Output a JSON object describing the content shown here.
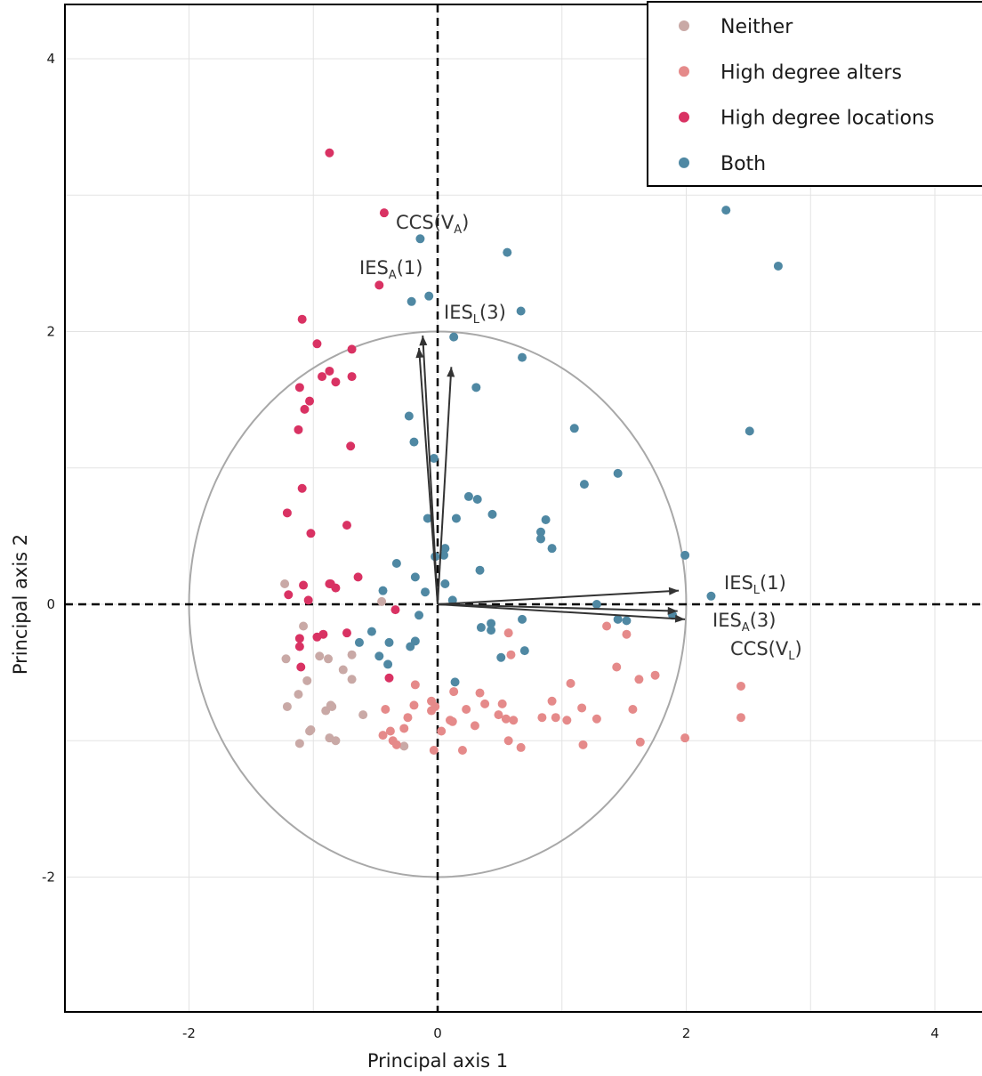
{
  "chart_data": {
    "type": "scatter",
    "xlabel": "Principal axis 1",
    "ylabel": "Principal axis 2",
    "xlim": [
      -3.0,
      4.4
    ],
    "ylim": [
      -3.0,
      4.4
    ],
    "xticks": [
      -2,
      0,
      2,
      4
    ],
    "yticks": [
      -2,
      0,
      2,
      4
    ],
    "grid": true,
    "legend_position": "top-right",
    "reference_lines": [
      {
        "axis": "x",
        "value": 0
      },
      {
        "axis": "y",
        "value": 0
      }
    ],
    "correlation_circle": {
      "center": [
        0,
        0
      ],
      "radius": 2
    },
    "series": [
      {
        "name": "Neither",
        "color": "#c9a9a6",
        "points": [
          [
            -1.23,
            0.15
          ],
          [
            -1.22,
            -0.4
          ],
          [
            -1.21,
            -0.75
          ],
          [
            -1.12,
            -0.66
          ],
          [
            -1.11,
            -1.02
          ],
          [
            -1.08,
            -0.16
          ],
          [
            -1.05,
            -0.56
          ],
          [
            -1.03,
            -0.93
          ],
          [
            -1.02,
            -0.92
          ],
          [
            -0.95,
            -0.38
          ],
          [
            -0.9,
            -0.78
          ],
          [
            -0.88,
            -0.4
          ],
          [
            -0.87,
            -0.98
          ],
          [
            -0.86,
            -0.74
          ],
          [
            -0.85,
            -0.75
          ],
          [
            -0.82,
            -1.0
          ],
          [
            -0.76,
            -0.48
          ],
          [
            -0.69,
            -0.37
          ],
          [
            -0.69,
            -0.55
          ],
          [
            -0.6,
            -0.81
          ],
          [
            -0.45,
            0.02
          ],
          [
            -0.27,
            -1.04
          ]
        ]
      },
      {
        "name": "High degree alters",
        "color": "#e58a8a",
        "points": [
          [
            -0.44,
            -0.96
          ],
          [
            -0.42,
            -0.77
          ],
          [
            -0.38,
            -0.93
          ],
          [
            -0.36,
            -1.0
          ],
          [
            -0.33,
            -1.03
          ],
          [
            -0.27,
            -0.91
          ],
          [
            -0.24,
            -0.83
          ],
          [
            -0.19,
            -0.74
          ],
          [
            -0.18,
            -0.59
          ],
          [
            -0.05,
            -0.71
          ],
          [
            -0.05,
            -0.78
          ],
          [
            -0.03,
            -1.07
          ],
          [
            -0.02,
            -0.75
          ],
          [
            0.03,
            -0.93
          ],
          [
            0.1,
            -0.85
          ],
          [
            0.12,
            -0.86
          ],
          [
            0.13,
            -0.64
          ],
          [
            0.2,
            -1.07
          ],
          [
            0.23,
            -0.77
          ],
          [
            0.3,
            -0.89
          ],
          [
            0.34,
            -0.65
          ],
          [
            0.38,
            -0.73
          ],
          [
            0.49,
            -0.81
          ],
          [
            0.52,
            -0.73
          ],
          [
            0.55,
            -0.84
          ],
          [
            0.57,
            -1.0
          ],
          [
            0.59,
            -0.37
          ],
          [
            0.61,
            -0.85
          ],
          [
            0.67,
            -1.05
          ],
          [
            0.84,
            -0.83
          ],
          [
            0.92,
            -0.71
          ],
          [
            0.95,
            -0.83
          ],
          [
            1.04,
            -0.85
          ],
          [
            1.07,
            -0.58
          ],
          [
            1.16,
            -0.76
          ],
          [
            1.17,
            -1.03
          ],
          [
            1.28,
            -0.84
          ],
          [
            1.36,
            -0.16
          ],
          [
            1.44,
            -0.46
          ],
          [
            1.52,
            -0.22
          ],
          [
            1.57,
            -0.77
          ],
          [
            1.62,
            -0.55
          ],
          [
            1.63,
            -1.01
          ],
          [
            1.75,
            -0.52
          ],
          [
            1.99,
            -0.98
          ],
          [
            2.44,
            -0.6
          ],
          [
            2.44,
            -0.83
          ],
          [
            0.57,
            -0.21
          ]
        ]
      },
      {
        "name": "High degree locations",
        "color": "#d93263",
        "points": [
          [
            -0.87,
            3.31
          ],
          [
            -0.43,
            2.87
          ],
          [
            -0.47,
            2.34
          ],
          [
            -1.09,
            2.09
          ],
          [
            -0.97,
            1.91
          ],
          [
            -0.69,
            1.87
          ],
          [
            -0.87,
            1.71
          ],
          [
            -0.93,
            1.67
          ],
          [
            -0.69,
            1.67
          ],
          [
            -0.82,
            1.63
          ],
          [
            -1.11,
            1.59
          ],
          [
            -1.03,
            1.49
          ],
          [
            -1.07,
            1.43
          ],
          [
            -1.12,
            1.28
          ],
          [
            -0.7,
            1.16
          ],
          [
            -1.09,
            0.85
          ],
          [
            -1.21,
            0.67
          ],
          [
            -0.73,
            0.58
          ],
          [
            -1.02,
            0.52
          ],
          [
            -0.64,
            0.2
          ],
          [
            -0.87,
            0.15
          ],
          [
            -0.86,
            0.15
          ],
          [
            -1.08,
            0.14
          ],
          [
            -0.82,
            0.12
          ],
          [
            -1.2,
            0.07
          ],
          [
            -1.04,
            0.03
          ],
          [
            -0.34,
            -0.04
          ],
          [
            -1.11,
            -0.25
          ],
          [
            -0.97,
            -0.24
          ],
          [
            -0.92,
            -0.22
          ],
          [
            -0.73,
            -0.21
          ],
          [
            -1.11,
            -0.31
          ],
          [
            -1.1,
            -0.46
          ],
          [
            -0.39,
            -0.54
          ]
        ]
      },
      {
        "name": "Both",
        "color": "#4f88a3",
        "points": [
          [
            2.32,
            2.89
          ],
          [
            2.74,
            2.48
          ],
          [
            -0.14,
            2.68
          ],
          [
            0.56,
            2.58
          ],
          [
            -0.07,
            2.26
          ],
          [
            -0.21,
            2.22
          ],
          [
            0.67,
            2.15
          ],
          [
            0.13,
            1.96
          ],
          [
            0.68,
            1.81
          ],
          [
            0.31,
            1.59
          ],
          [
            -0.23,
            1.38
          ],
          [
            1.1,
            1.29
          ],
          [
            2.51,
            1.27
          ],
          [
            -0.19,
            1.19
          ],
          [
            -0.03,
            1.07
          ],
          [
            1.45,
            0.96
          ],
          [
            1.18,
            0.88
          ],
          [
            0.25,
            0.79
          ],
          [
            0.32,
            0.77
          ],
          [
            0.44,
            0.66
          ],
          [
            -0.08,
            0.63
          ],
          [
            0.15,
            0.63
          ],
          [
            0.87,
            0.62
          ],
          [
            0.83,
            0.53
          ],
          [
            0.83,
            0.48
          ],
          [
            0.92,
            0.41
          ],
          [
            0.06,
            0.41
          ],
          [
            0.05,
            0.36
          ],
          [
            -0.02,
            0.35
          ],
          [
            1.99,
            0.36
          ],
          [
            -0.33,
            0.3
          ],
          [
            0.34,
            0.25
          ],
          [
            -0.18,
            0.2
          ],
          [
            0.06,
            0.15
          ],
          [
            -0.44,
            0.1
          ],
          [
            -0.1,
            0.09
          ],
          [
            0.12,
            0.03
          ],
          [
            2.2,
            0.06
          ],
          [
            1.28,
            0.0
          ],
          [
            -0.15,
            -0.08
          ],
          [
            0.68,
            -0.11
          ],
          [
            1.45,
            -0.11
          ],
          [
            1.52,
            -0.12
          ],
          [
            1.89,
            -0.08
          ],
          [
            0.43,
            -0.14
          ],
          [
            0.35,
            -0.17
          ],
          [
            0.43,
            -0.19
          ],
          [
            -0.53,
            -0.2
          ],
          [
            -0.63,
            -0.28
          ],
          [
            -0.18,
            -0.27
          ],
          [
            -0.22,
            -0.31
          ],
          [
            -0.39,
            -0.28
          ],
          [
            0.7,
            -0.34
          ],
          [
            -0.47,
            -0.38
          ],
          [
            0.51,
            -0.39
          ],
          [
            -0.4,
            -0.44
          ],
          [
            0.14,
            -0.57
          ]
        ]
      }
    ],
    "vectors": [
      {
        "label": "CCS(V_A)",
        "end": [
          -0.12,
          1.97
        ]
      },
      {
        "label": "IES_A(1)",
        "end": [
          -0.15,
          1.88
        ]
      },
      {
        "label": "IES_L(3)",
        "end": [
          0.11,
          1.74
        ]
      },
      {
        "label": "IES_L(1)",
        "end": [
          1.94,
          0.1
        ]
      },
      {
        "label": "IES_A(3)",
        "end": [
          1.93,
          -0.05
        ]
      },
      {
        "label": "CCS(V_L)",
        "end": [
          1.99,
          -0.11
        ]
      }
    ]
  }
}
